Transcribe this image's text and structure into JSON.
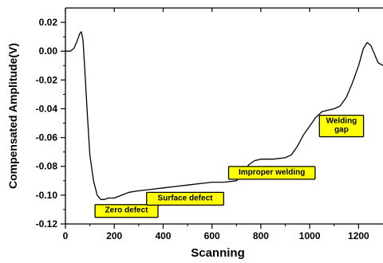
{
  "chart_data": {
    "type": "line",
    "title": "",
    "xlabel": "Scanning",
    "ylabel": "Compensated Amplitude(V)",
    "xlim": [
      0,
      1300
    ],
    "ylim": [
      -0.12,
      0.03
    ],
    "grid": false,
    "x_ticks": [
      0,
      200,
      400,
      600,
      800,
      1000,
      1200
    ],
    "x_tick_labels": [
      "0",
      "200",
      "400",
      "600",
      "800",
      "1000",
      "1200"
    ],
    "y_ticks": [
      0.02,
      0.0,
      -0.02,
      -0.04,
      -0.06,
      -0.08,
      -0.1,
      -0.12
    ],
    "y_tick_labels": [
      "0.02",
      "0.00",
      "-0.02",
      "-0.04",
      "-0.06",
      "-0.08",
      "-0.10",
      "-0.12"
    ],
    "series": [
      {
        "color": "#000000",
        "x": [
          0,
          20,
          35,
          50,
          58,
          65,
          72,
          80,
          90,
          100,
          115,
          130,
          145,
          160,
          175,
          200,
          230,
          260,
          300,
          350,
          400,
          450,
          500,
          550,
          600,
          650,
          700,
          725,
          750,
          775,
          800,
          850,
          900,
          925,
          950,
          975,
          1000,
          1025,
          1050,
          1075,
          1100,
          1125,
          1150,
          1175,
          1200,
          1220,
          1235,
          1250,
          1265,
          1280,
          1300
        ],
        "y": [
          0.0,
          0.0,
          0.002,
          0.008,
          0.012,
          0.0135,
          0.008,
          -0.015,
          -0.045,
          -0.072,
          -0.09,
          -0.1,
          -0.103,
          -0.103,
          -0.102,
          -0.102,
          -0.1,
          -0.098,
          -0.097,
          -0.096,
          -0.095,
          -0.094,
          -0.093,
          -0.092,
          -0.091,
          -0.091,
          -0.09,
          -0.086,
          -0.079,
          -0.076,
          -0.075,
          -0.075,
          -0.074,
          -0.072,
          -0.066,
          -0.058,
          -0.052,
          -0.046,
          -0.042,
          -0.041,
          -0.04,
          -0.038,
          -0.032,
          -0.022,
          -0.01,
          0.002,
          0.006,
          0.004,
          -0.002,
          -0.008,
          -0.01
        ]
      }
    ],
    "annotations": [
      {
        "text": "Zero defect",
        "x": 250,
        "y": -0.111
      },
      {
        "text": "Surface defect",
        "x": 490,
        "y": -0.1025
      },
      {
        "text": "Improper welding",
        "x": 845,
        "y": -0.0845
      },
      {
        "text": "Welding\ngap",
        "x": 1130,
        "y": -0.052
      }
    ],
    "colors": {
      "line": "#000000",
      "annotation_fill": "#ffff00",
      "annotation_border": "#000000"
    }
  }
}
